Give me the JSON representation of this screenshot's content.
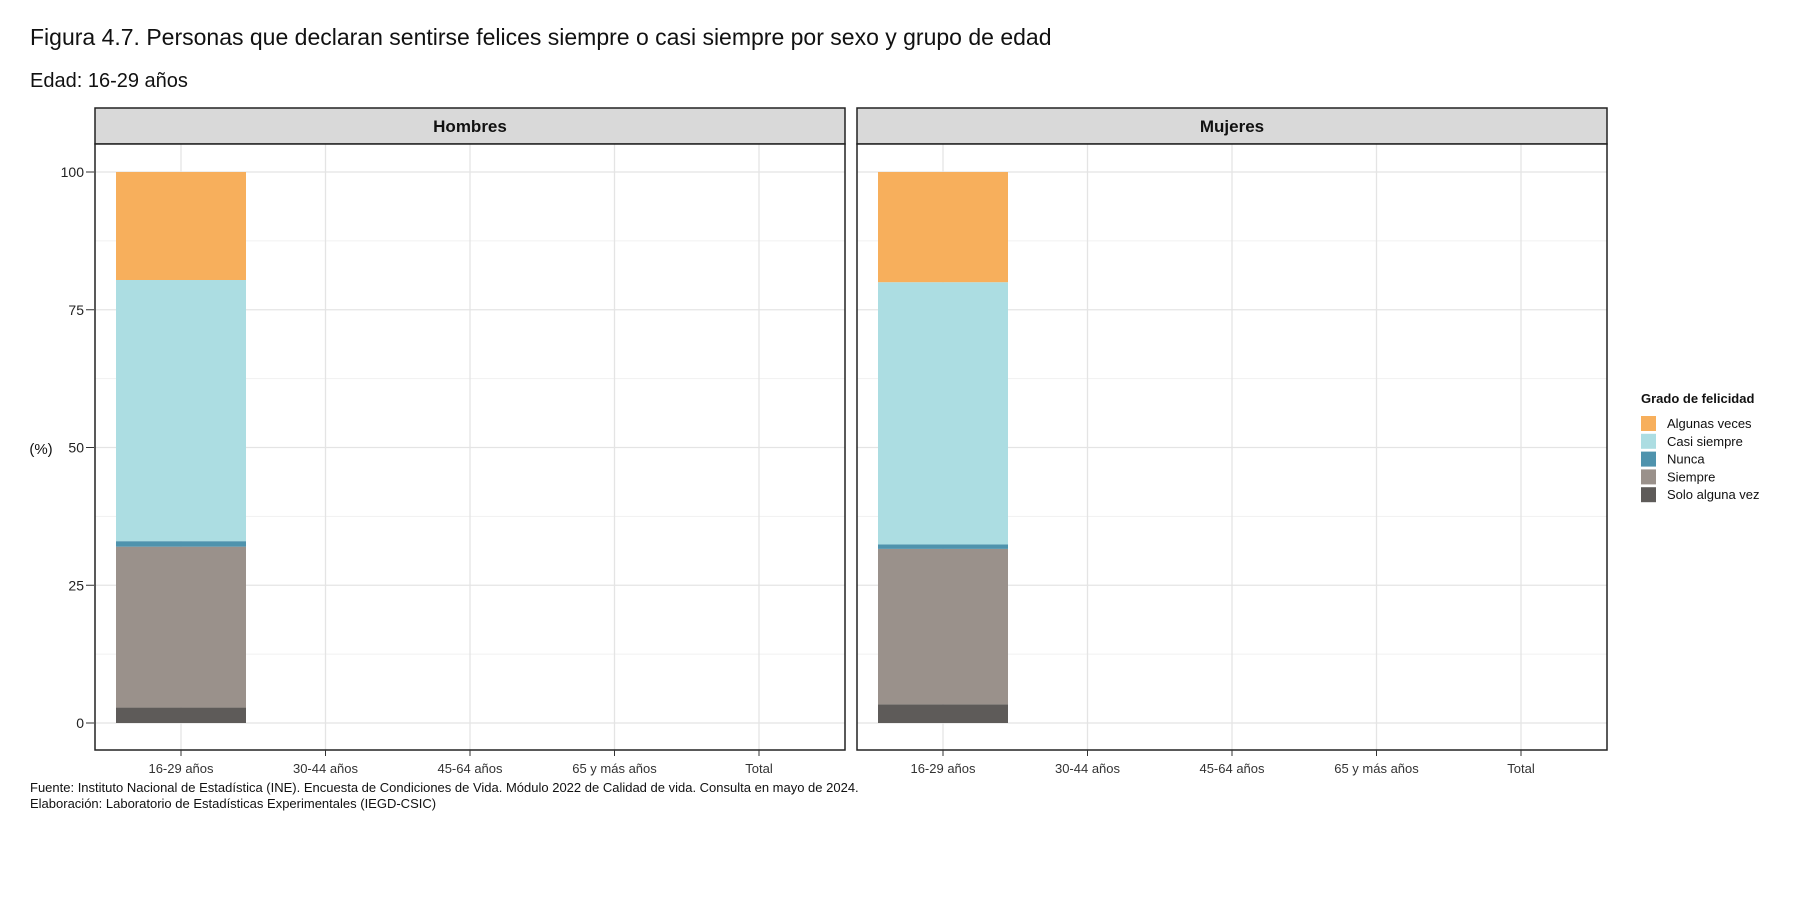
{
  "title": "Figura 4.7. Personas que declaran sentirse felices siempre o casi siempre por sexo y grupo de edad",
  "subtitle": "Edad: 16-29 años",
  "source": "Fuente: Instituto Nacional de Estadística (INE). Encuesta de Condiciones de Vida. Módulo 2022 de Calidad de vida. Consulta en mayo de 2024.",
  "credit": "Elaboración: Laboratorio de Estadísticas Experimentales (IEGD-CSIC)",
  "colors": {
    "Algunas veces": "#f7af5c",
    "Casi siempre": "#acdde2",
    "Nunca": "#4f93ad",
    "Siempre": "#9a918b",
    "Solo alguna vez": "#5e5b59"
  },
  "chart_data": {
    "type": "bar",
    "stacked": true,
    "ylabel": "(%)",
    "ylim": [
      0,
      100
    ],
    "yticks": [
      0,
      25,
      50,
      75,
      100
    ],
    "categories": [
      "16-29 años",
      "30-44 años",
      "45-64 años",
      "65 y más años",
      "Total"
    ],
    "legend": {
      "title": "Grado de felicidad",
      "position": "right",
      "items": [
        "Algunas veces",
        "Casi siempre",
        "Nunca",
        "Siempre",
        "Solo alguna vez"
      ]
    },
    "stack_order": [
      "Solo alguna vez",
      "Siempre",
      "Nunca",
      "Casi siempre",
      "Algunas veces"
    ],
    "panels": [
      {
        "name": "Hombres",
        "series": [
          {
            "name": "Solo alguna vez",
            "values": [
              2.8,
              null,
              null,
              null,
              null
            ]
          },
          {
            "name": "Siempre",
            "values": [
              29.2,
              null,
              null,
              null,
              null
            ]
          },
          {
            "name": "Nunca",
            "values": [
              1.0,
              null,
              null,
              null,
              null
            ]
          },
          {
            "name": "Casi siempre",
            "values": [
              47.4,
              null,
              null,
              null,
              null
            ]
          },
          {
            "name": "Algunas veces",
            "values": [
              19.6,
              null,
              null,
              null,
              null
            ]
          }
        ]
      },
      {
        "name": "Mujeres",
        "series": [
          {
            "name": "Solo alguna vez",
            "values": [
              3.4,
              null,
              null,
              null,
              null
            ]
          },
          {
            "name": "Siempre",
            "values": [
              28.2,
              null,
              null,
              null,
              null
            ]
          },
          {
            "name": "Nunca",
            "values": [
              0.8,
              null,
              null,
              null,
              null
            ]
          },
          {
            "name": "Casi siempre",
            "values": [
              47.6,
              null,
              null,
              null,
              null
            ]
          },
          {
            "name": "Algunas veces",
            "values": [
              20.0,
              null,
              null,
              null,
              null
            ]
          }
        ]
      }
    ]
  }
}
